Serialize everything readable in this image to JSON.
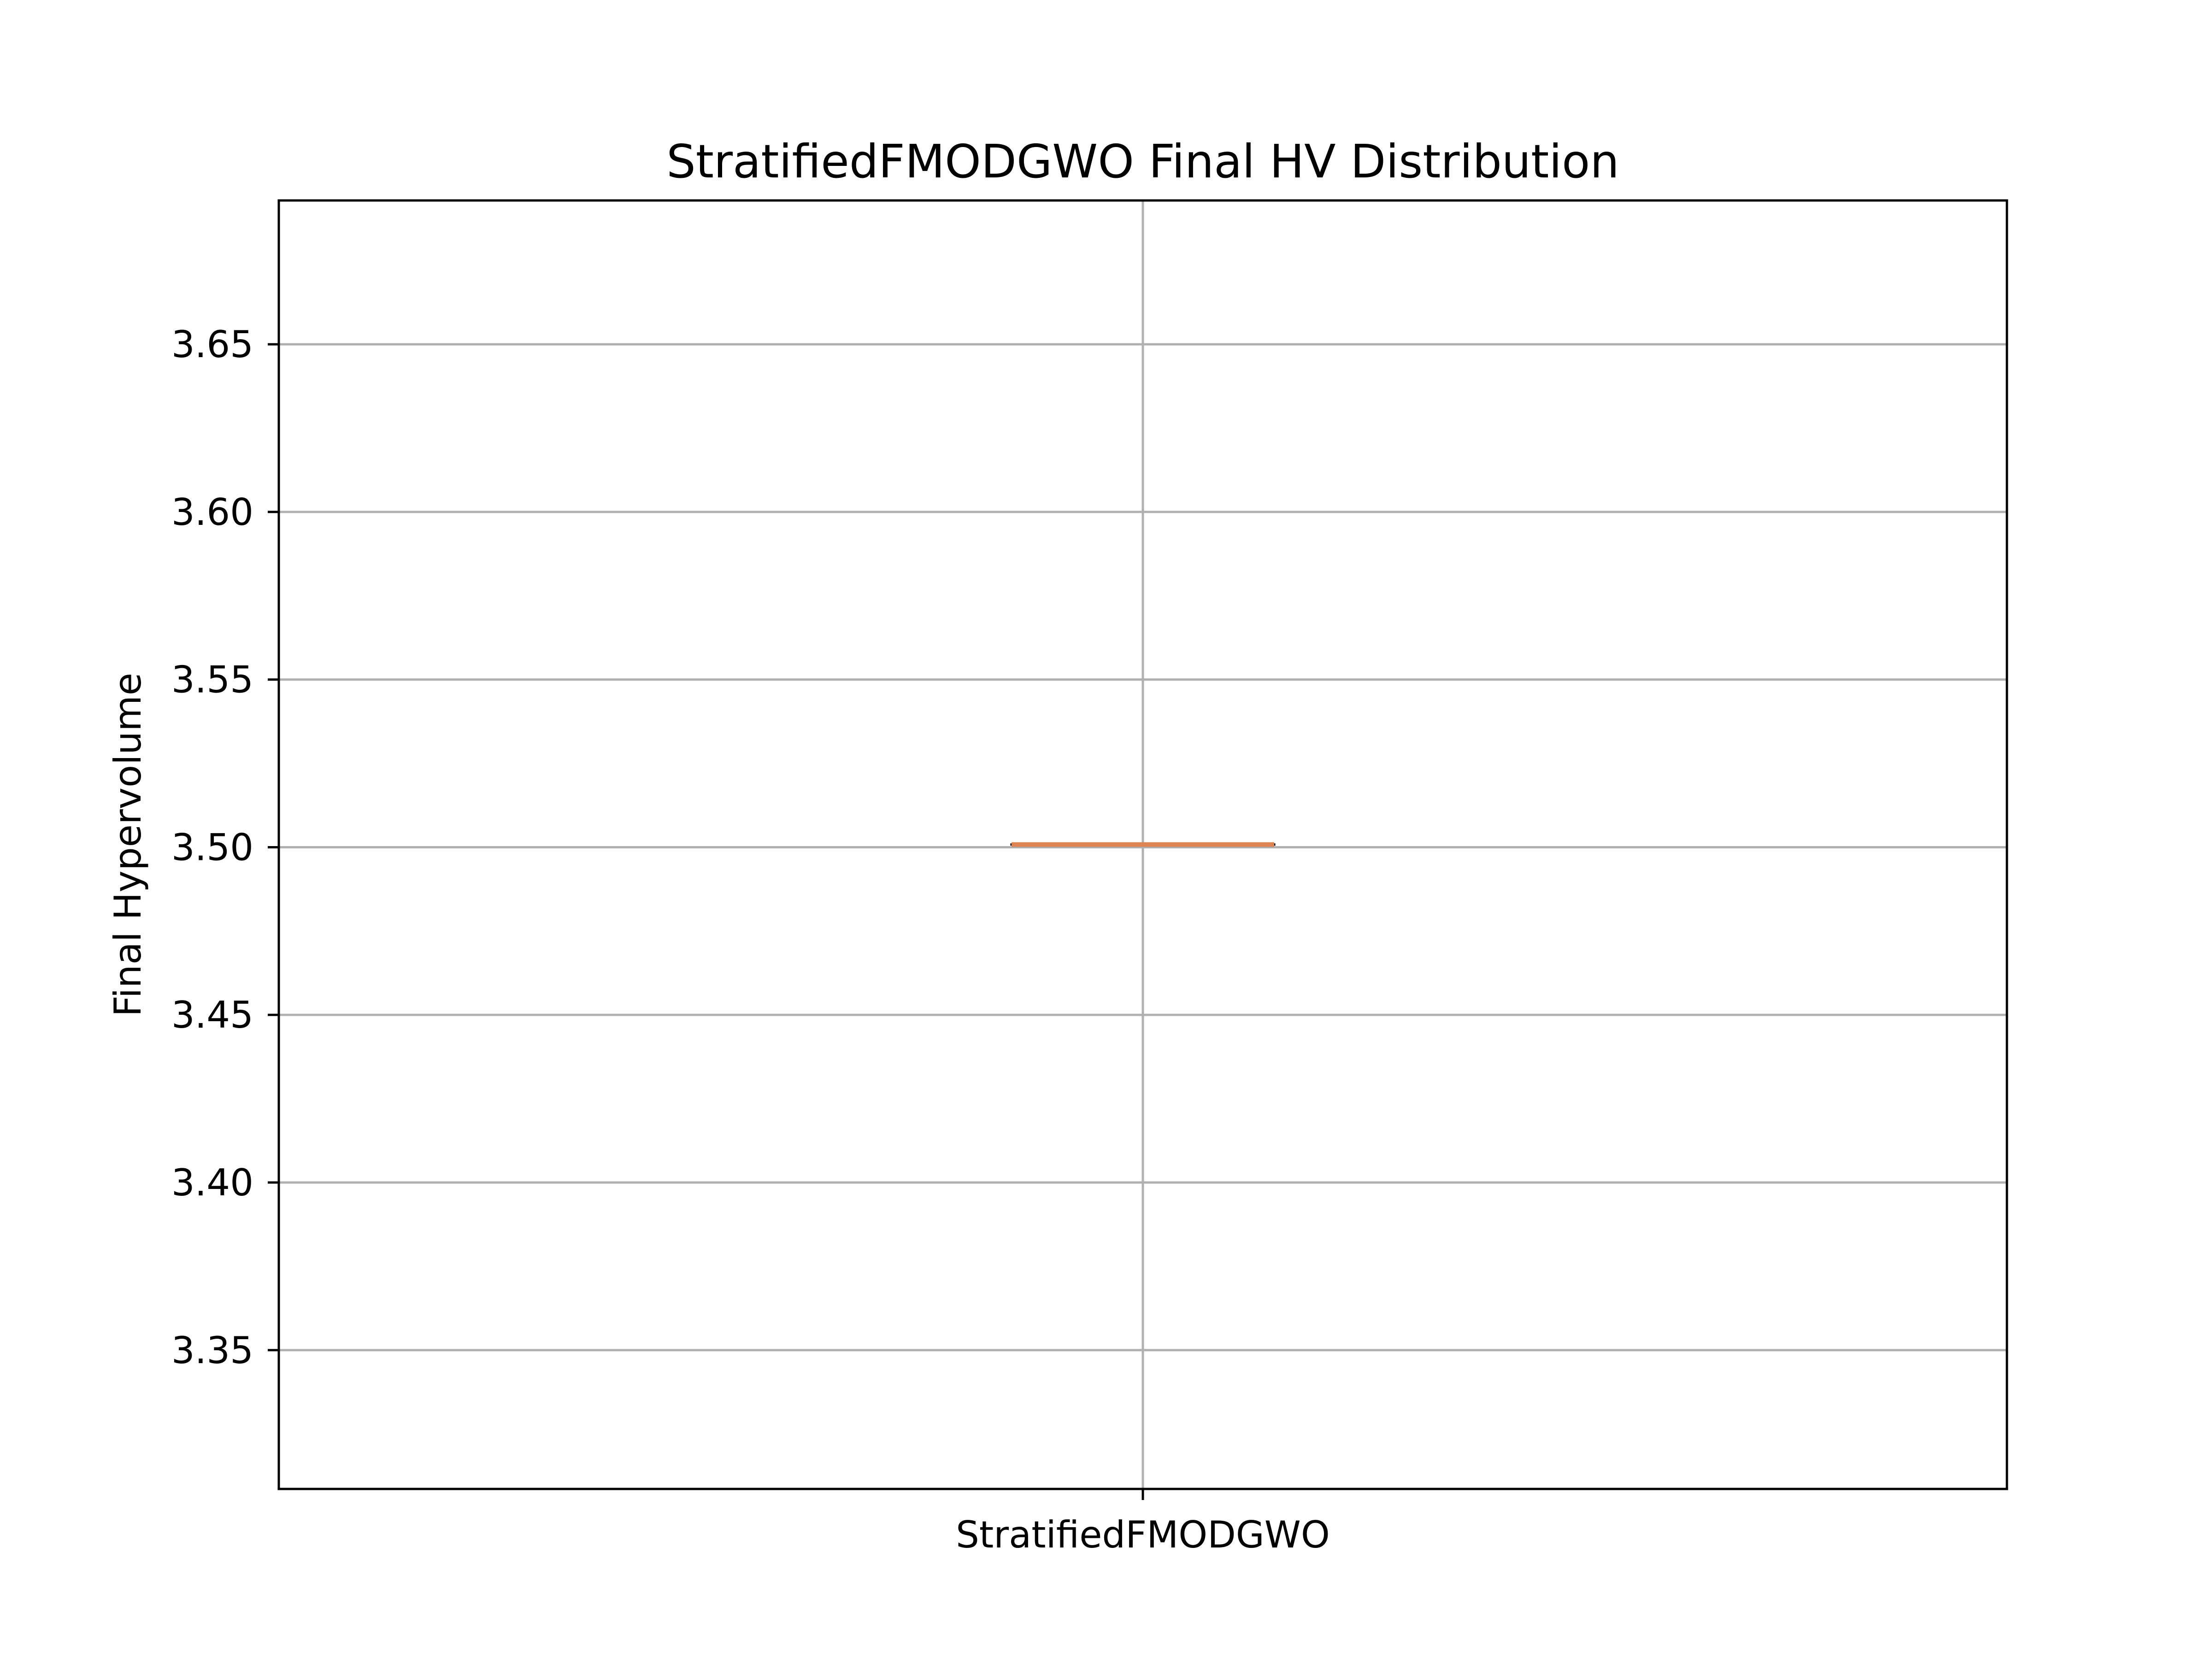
{
  "chart_data": {
    "type": "box",
    "title": "StratifiedFMODGWO Final HV Distribution",
    "xlabel": "",
    "ylabel": "Final Hypervolume",
    "categories": [
      "StratifiedFMODGWO"
    ],
    "series": [
      {
        "values": [
          {
            "category": "StratifiedFMODGWO",
            "min": 3.5008,
            "q1": 3.5008,
            "median": 3.5008,
            "q3": 3.5008,
            "max": 3.5008
          }
        ]
      }
    ],
    "ylim": [
      3.3086,
      3.6929
    ],
    "yticks": [
      3.35,
      3.4,
      3.45,
      3.5,
      3.55,
      3.6,
      3.65
    ],
    "ytick_labels": [
      "3.35",
      "3.40",
      "3.45",
      "3.50",
      "3.55",
      "3.60",
      "3.65"
    ],
    "grid": true,
    "legend": "none",
    "colors": {
      "median": "#dd8452",
      "grid": "#b0b0b0",
      "axes": "#000000",
      "background": "#ffffff"
    }
  }
}
